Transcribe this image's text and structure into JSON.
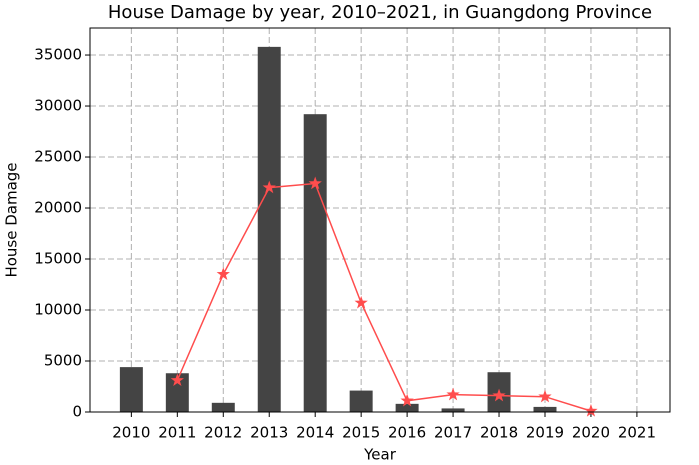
{
  "chart_data": {
    "type": "bar",
    "title": "House Damage by year, 2010–2021, in Guangdong Province",
    "xlabel": "Year",
    "ylabel": "House Damage",
    "x": [
      2010,
      2011,
      2012,
      2013,
      2014,
      2015,
      2016,
      2017,
      2018,
      2019,
      2020,
      2021
    ],
    "xlim": [
      2009.1,
      2021.72
    ],
    "xticks": [
      2010,
      2011,
      2012,
      2013,
      2014,
      2015,
      2016,
      2017,
      2018,
      2019,
      2020,
      2021
    ],
    "ylim": [
      0,
      37650
    ],
    "yticks": [
      0,
      5000,
      10000,
      15000,
      20000,
      25000,
      30000,
      35000
    ],
    "grid": true,
    "series": [
      {
        "type": "bar",
        "color": "#444444",
        "values": [
          4400,
          3800,
          900,
          35800,
          29200,
          2100,
          800,
          350,
          3900,
          500,
          0,
          0
        ]
      },
      {
        "type": "line",
        "color": "#ff4d4d",
        "marker": "star",
        "values": [
          null,
          3100,
          13500,
          22000,
          22400,
          10700,
          1100,
          1700,
          1600,
          1500,
          100,
          null
        ]
      }
    ]
  }
}
